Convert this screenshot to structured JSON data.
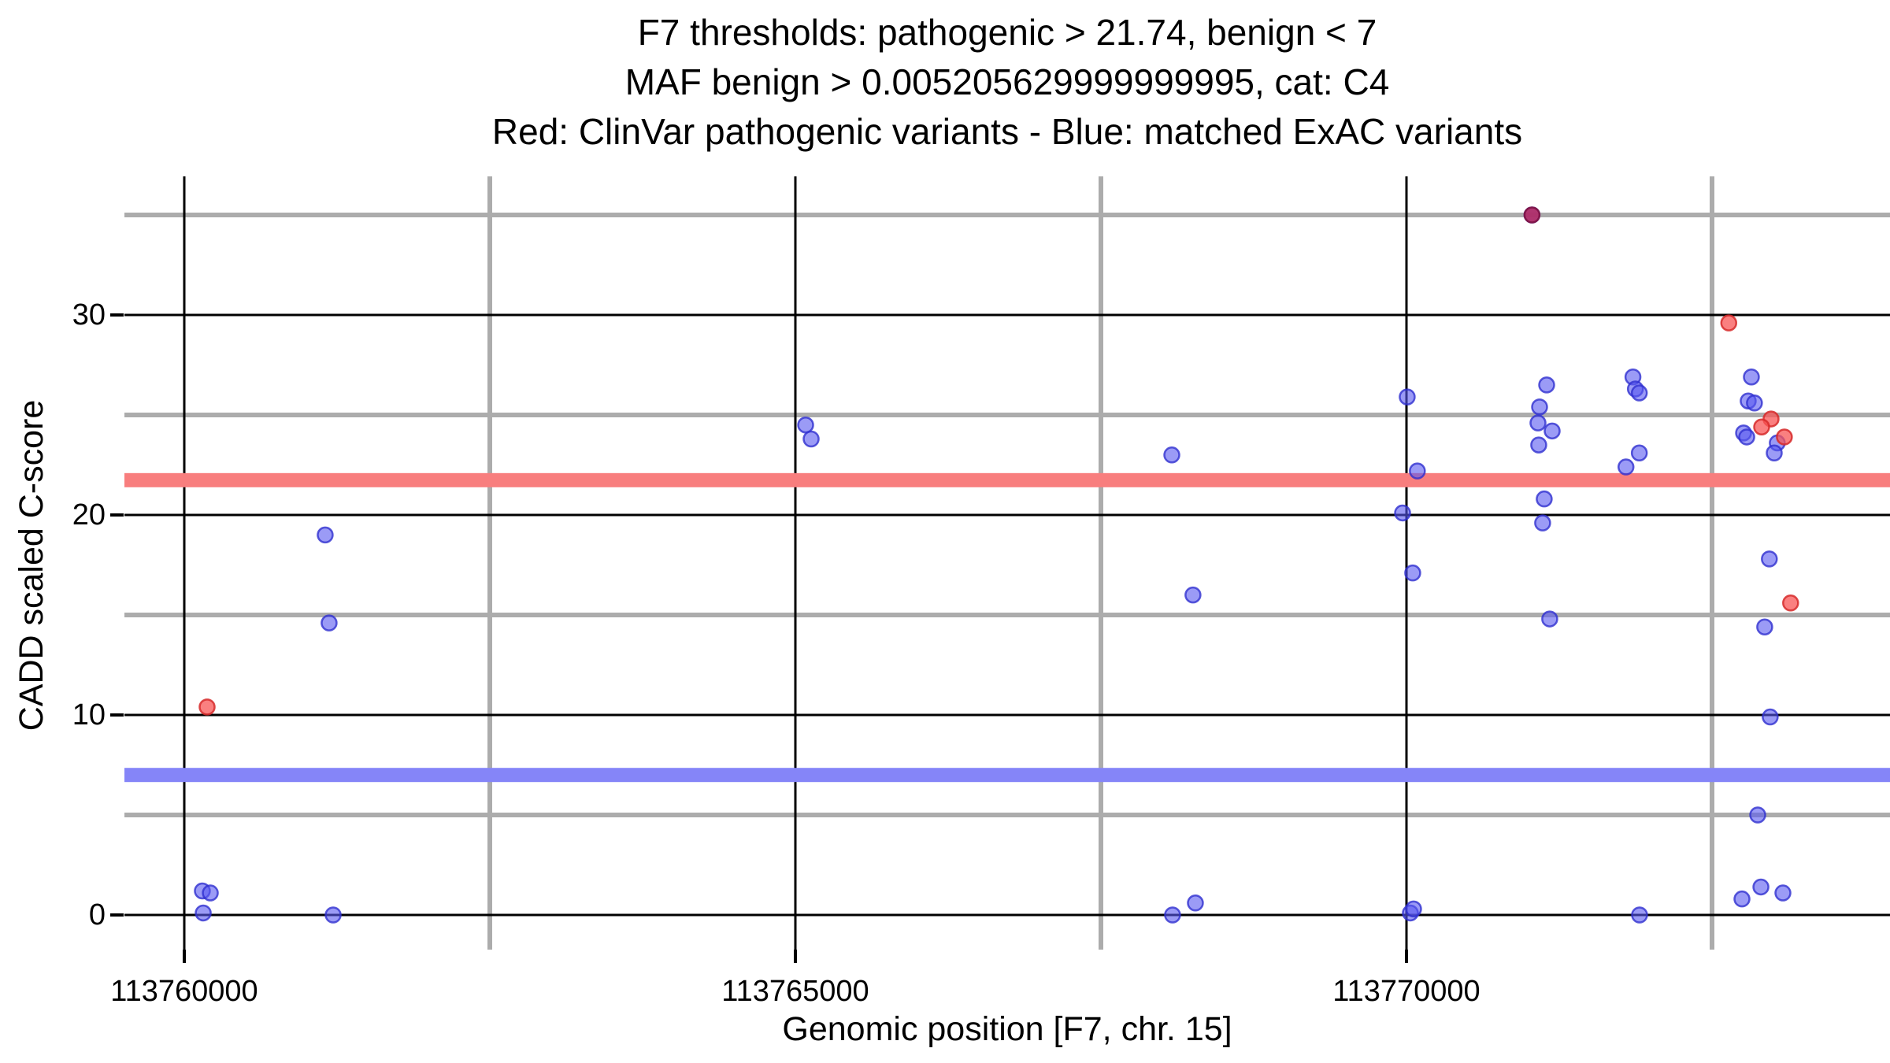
{
  "title": {
    "line1": "F7 thresholds: pathogenic > 21.74, benign < 7",
    "line2": "MAF benign > 0.005205629999999995, cat: C4",
    "line3": "Red: ClinVar pathogenic variants - Blue: matched ExAC variants"
  },
  "x_axis": {
    "label": "Genomic position [F7, chr. 15]",
    "tick_labels": [
      "113760000",
      "113765000",
      "113770000"
    ],
    "tick_values": [
      113760000,
      113765000,
      113770000
    ],
    "minor_values": [
      113762500,
      113767500,
      113772500
    ]
  },
  "y_axis": {
    "label": "CADD scaled C-score",
    "tick_labels": [
      "0",
      "10",
      "20",
      "30"
    ],
    "tick_values": [
      0,
      10,
      20,
      30
    ],
    "minor_values": [
      5,
      15,
      25,
      35
    ]
  },
  "thresholds": {
    "gene": "F7",
    "pathogenic_cutoff": 21.74,
    "benign_cutoff": 7,
    "maf_benign": "0.005205629999999995",
    "category": "C4"
  },
  "colors": {
    "pathogenic_band": "#f87e7e",
    "benign_band": "#8585f8",
    "major_grid": "#000000",
    "minor_grid": "#acacac",
    "red_point_fill": "rgba(248,85,85,0.75)",
    "red_point_stroke": "rgba(214,42,42,0.85)",
    "blue_point_fill": "rgba(88,88,240,0.60)",
    "blue_point_stroke": "rgba(48,48,208,0.80)",
    "overlap_point_fill": "rgba(178,45,100,0.92)",
    "overlap_point_stroke": "rgba(128,20,70,0.95)"
  },
  "chart_data": {
    "type": "scatter",
    "title": "F7 thresholds: pathogenic > 21.74, benign < 7 / MAF benign > 0.005205629999999995, cat: C4",
    "xlabel": "Genomic position [F7, chr. 15]",
    "ylabel": "CADD scaled C-score",
    "xlim": [
      113759520,
      113773750
    ],
    "ylim": [
      -1.8,
      36.9
    ],
    "grid": "major-black-minor-gray",
    "legend_position": "none",
    "hlines": [
      {
        "y": 21.74,
        "color": "#f87e7e",
        "label": "pathogenic threshold"
      },
      {
        "y": 7,
        "color": "#8585f8",
        "label": "benign threshold"
      }
    ],
    "series": [
      {
        "name": "matched ExAC variants",
        "color": "blue",
        "points": [
          [
            113760148,
            1.2
          ],
          [
            113760213,
            1.1
          ],
          [
            113760155,
            0.1
          ],
          [
            113761218,
            0
          ],
          [
            113761153,
            19
          ],
          [
            113761185,
            14.6
          ],
          [
            113765084,
            24.5
          ],
          [
            113765129,
            23.8
          ],
          [
            113768080,
            23
          ],
          [
            113768253,
            16
          ],
          [
            113768086,
            0
          ],
          [
            113768273,
            0.6
          ],
          [
            113770006,
            25.9
          ],
          [
            113770089,
            22.2
          ],
          [
            113769968,
            20.1
          ],
          [
            113770051,
            17.1
          ],
          [
            113770032,
            0.1
          ],
          [
            113770058,
            0.3
          ],
          [
            113771147,
            26.5
          ],
          [
            113771089,
            25.4
          ],
          [
            113771076,
            24.6
          ],
          [
            113771192,
            24.2
          ],
          [
            113771082,
            23.5
          ],
          [
            113771127,
            20.8
          ],
          [
            113771114,
            19.6
          ],
          [
            113771172,
            14.8
          ],
          [
            113771027,
            35
          ],
          [
            113771853,
            26.9
          ],
          [
            113771873,
            26.3
          ],
          [
            113771905,
            26.1
          ],
          [
            113771905,
            23.1
          ],
          [
            113771796,
            22.4
          ],
          [
            113771907,
            0
          ],
          [
            113772822,
            26.9
          ],
          [
            113772796,
            25.7
          ],
          [
            113772847,
            25.6
          ],
          [
            113772758,
            24.1
          ],
          [
            113772784,
            23.9
          ],
          [
            113773034,
            23.6
          ],
          [
            113773009,
            23.1
          ],
          [
            113772969,
            17.8
          ],
          [
            113772931,
            14.4
          ],
          [
            113772976,
            9.9
          ],
          [
            113772874,
            5
          ],
          [
            113772745,
            0.8
          ],
          [
            113772900,
            1.4
          ],
          [
            113773080,
            1.1
          ]
        ]
      },
      {
        "name": "ClinVar pathogenic variants",
        "color": "red",
        "points": [
          [
            113760187,
            10.4
          ],
          [
            113771027,
            35,
            "dark"
          ],
          [
            113772637,
            29.6
          ],
          [
            113772983,
            24.8
          ],
          [
            113772906,
            24.4
          ],
          [
            113773092,
            23.9
          ],
          [
            113773143,
            15.6
          ]
        ]
      }
    ]
  }
}
